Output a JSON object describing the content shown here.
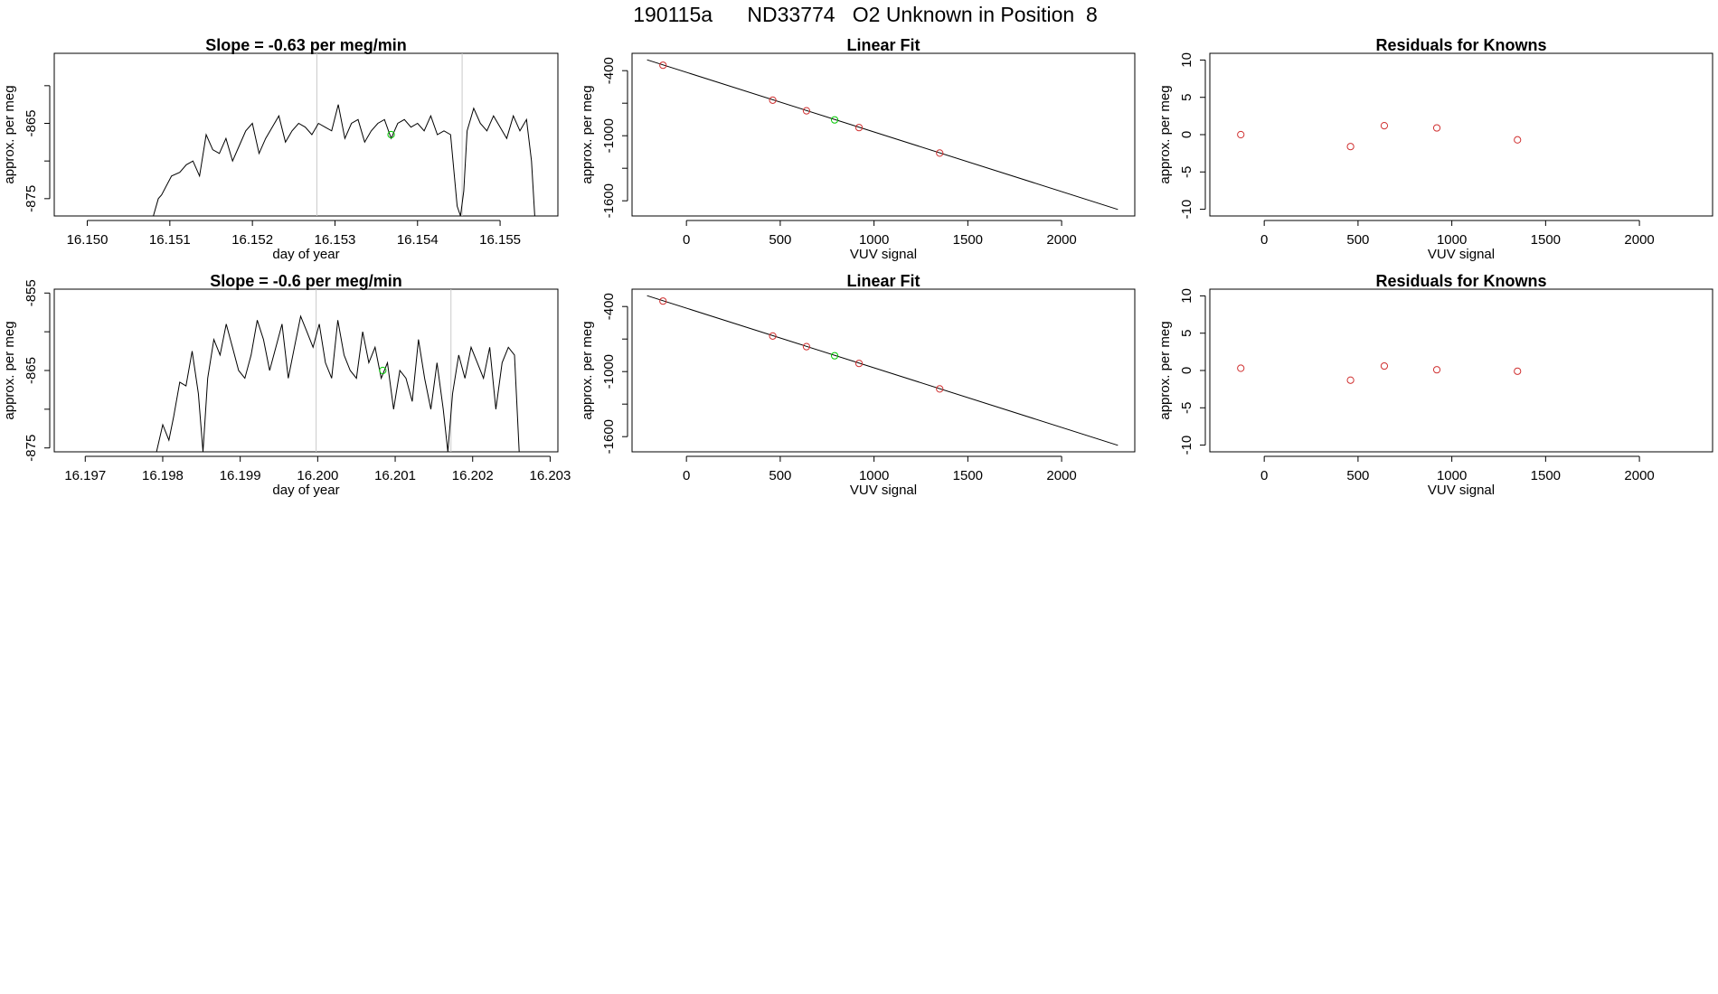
{
  "page": {
    "title": "190115a      ND33774   O2 Unknown in Position  8"
  },
  "chart_data": [
    {
      "type": "line",
      "title": "Slope =  -0.63  per meg/min",
      "xlabel": "day of year",
      "ylabel": "approx. per meg",
      "xlim": [
        16.1496,
        16.1557
      ],
      "ylim": [
        -877.3,
        -855.7
      ],
      "xticks": [
        "16.150",
        "16.151",
        "16.152",
        "16.153",
        "16.154",
        "16.155"
      ],
      "yticks": [
        -875,
        -870,
        -865,
        -860
      ],
      "ytick_labels": [
        "-875",
        "",
        "-865",
        ""
      ],
      "vlines": [
        16.15278,
        16.15454
      ],
      "series": [
        {
          "x": [
            16.1508,
            16.15086,
            16.1509,
            16.15102,
            16.15112,
            16.1512,
            16.15128,
            16.15136,
            16.15144,
            16.15152,
            16.1516,
            16.15168,
            16.15176,
            16.15184,
            16.15192,
            16.152,
            16.15208,
            16.15216,
            16.15224,
            16.15232,
            16.1524,
            16.15248,
            16.15256,
            16.15264,
            16.15272,
            16.1528,
            16.15288,
            16.15296,
            16.15304,
            16.15312,
            16.1532,
            16.15328,
            16.15336,
            16.15344,
            16.15352,
            16.1536,
            16.15368,
            16.15376,
            16.15384,
            16.15392,
            16.154,
            16.15408,
            16.15416,
            16.15424,
            16.15432,
            16.1544,
            16.15448,
            16.15452,
            16.15456,
            16.1546,
            16.15468,
            16.15476,
            16.15484,
            16.15492,
            16.155,
            16.15508,
            16.15516,
            16.15524,
            16.15532,
            16.15538,
            16.15542
          ],
          "values": [
            -877.3,
            -875,
            -874.5,
            -872,
            -871.5,
            -870.5,
            -870,
            -872,
            -866.5,
            -868.5,
            -869,
            -867,
            -870,
            -868,
            -866,
            -865,
            -869,
            -867,
            -865.5,
            -864,
            -867.5,
            -866,
            -865,
            -865.5,
            -866.5,
            -865,
            -865.5,
            -866,
            -862.5,
            -867,
            -865,
            -864.5,
            -867.5,
            -866,
            -865,
            -864.5,
            -867,
            -865,
            -864.5,
            -865.5,
            -865,
            -866,
            -864,
            -866.5,
            -866,
            -866.5,
            -876,
            -877.3,
            -874,
            -866,
            -863,
            -865,
            -866,
            -864,
            -865.5,
            -867,
            -864,
            -866,
            -864.5,
            -870,
            -877.3
          ]
        }
      ],
      "points": [
        {
          "x": 16.15368,
          "y": -866.5,
          "color": "#00c800"
        }
      ]
    },
    {
      "type": "scatter",
      "title": "Linear Fit",
      "xlabel": "VUV signal",
      "ylabel": "approx. per meg",
      "xlim": [
        -290,
        2390
      ],
      "ylim": [
        -1740,
        -240
      ],
      "xticks": [
        0,
        500,
        1000,
        1500,
        2000
      ],
      "yticks": [
        -400,
        -700,
        -1000,
        -1300,
        -1600
      ],
      "ytick_labels": [
        "-400",
        "",
        "-1000",
        "",
        "-1600"
      ],
      "fit_line": {
        "x": [
          -210,
          2300
        ],
        "y": [
          -300,
          -1680
        ]
      },
      "points": [
        {
          "x": -125,
          "y": -350,
          "color": "#d03030"
        },
        {
          "x": 460,
          "y": -672,
          "color": "#d03030"
        },
        {
          "x": 640,
          "y": -770,
          "color": "#d03030"
        },
        {
          "x": 790,
          "y": -854,
          "color": "#00c800"
        },
        {
          "x": 920,
          "y": -925,
          "color": "#d03030"
        },
        {
          "x": 1350,
          "y": -1160,
          "color": "#d03030"
        }
      ]
    },
    {
      "type": "scatter",
      "title": "Residuals for Knowns",
      "xlabel": "VUV signal",
      "ylabel": "approx. per meg",
      "xlim": [
        -290,
        2390
      ],
      "ylim": [
        -10.9,
        10.9
      ],
      "xticks": [
        0,
        500,
        1000,
        1500,
        2000
      ],
      "yticks": [
        -10,
        -5,
        0,
        5,
        10
      ],
      "ytick_labels": [
        "-10",
        "-5",
        "0",
        "5",
        "10"
      ],
      "points": [
        {
          "x": -125,
          "y": 0,
          "color": "#d03030"
        },
        {
          "x": 460,
          "y": -1.6,
          "color": "#d03030"
        },
        {
          "x": 640,
          "y": 1.2,
          "color": "#d03030"
        },
        {
          "x": 920,
          "y": 0.9,
          "color": "#d03030"
        },
        {
          "x": 1350,
          "y": -0.7,
          "color": "#d03030"
        }
      ]
    },
    {
      "type": "line",
      "title": "Slope =  -0.6  per meg/min",
      "xlabel": "day of year",
      "ylabel": "approx. per meg",
      "xlim": [
        16.1966,
        16.2031
      ],
      "ylim": [
        -875.5,
        -854.5
      ],
      "xticks": [
        "16.197",
        "16.198",
        "16.199",
        "16.200",
        "16.201",
        "16.202",
        "16.203"
      ],
      "yticks": [
        -875,
        -870,
        -865,
        -860,
        -855
      ],
      "ytick_labels": [
        "-875",
        "",
        "-865",
        "",
        "-855"
      ],
      "vlines": [
        16.19998,
        16.20172
      ],
      "series": [
        {
          "x": [
            16.19792,
            16.198,
            16.19808,
            16.19814,
            16.19822,
            16.1983,
            16.19838,
            16.19846,
            16.19852,
            16.19858,
            16.19866,
            16.19874,
            16.19882,
            16.1989,
            16.19898,
            16.19906,
            16.19914,
            16.19922,
            16.1993,
            16.19938,
            16.19946,
            16.19954,
            16.19962,
            16.1997,
            16.19978,
            16.19986,
            16.19994,
            16.20002,
            16.2001,
            16.20018,
            16.20026,
            16.20034,
            16.20042,
            16.2005,
            16.20058,
            16.20066,
            16.20074,
            16.20082,
            16.2009,
            16.20098,
            16.20106,
            16.20114,
            16.20122,
            16.2013,
            16.20138,
            16.20146,
            16.20154,
            16.20162,
            16.20168,
            16.20174,
            16.20182,
            16.2019,
            16.20198,
            16.20206,
            16.20214,
            16.20222,
            16.2023,
            16.20238,
            16.20246,
            16.20254,
            16.2026
          ],
          "values": [
            -875.5,
            -872,
            -874,
            -871,
            -866.5,
            -867,
            -862.5,
            -868,
            -875.5,
            -866,
            -861,
            -863,
            -859,
            -862,
            -865,
            -866,
            -863,
            -858.5,
            -861,
            -865,
            -862,
            -859,
            -866,
            -862,
            -858,
            -860,
            -862,
            -859,
            -864,
            -866,
            -858.5,
            -863,
            -865,
            -866,
            -860,
            -864,
            -862,
            -866,
            -864,
            -870,
            -865,
            -866,
            -869,
            -861,
            -866,
            -870,
            -864,
            -870,
            -875.5,
            -868,
            -863,
            -866,
            -862,
            -864,
            -866,
            -862,
            -870,
            -864,
            -862,
            -863,
            -875.5
          ]
        }
      ],
      "points": [
        {
          "x": 16.20084,
          "y": -865,
          "color": "#00c800"
        }
      ]
    },
    {
      "type": "scatter",
      "title": "Linear Fit",
      "xlabel": "VUV signal",
      "ylabel": "approx. per meg",
      "xlim": [
        -290,
        2390
      ],
      "ylim": [
        -1740,
        -240
      ],
      "xticks": [
        0,
        500,
        1000,
        1500,
        2000
      ],
      "yticks": [
        -400,
        -700,
        -1000,
        -1300,
        -1600
      ],
      "ytick_labels": [
        "-400",
        "",
        "-1000",
        "",
        "-1600"
      ],
      "fit_line": {
        "x": [
          -210,
          2300
        ],
        "y": [
          -300,
          -1680
        ]
      },
      "points": [
        {
          "x": -125,
          "y": -350,
          "color": "#d03030"
        },
        {
          "x": 460,
          "y": -672,
          "color": "#d03030"
        },
        {
          "x": 640,
          "y": -770,
          "color": "#d03030"
        },
        {
          "x": 790,
          "y": -854,
          "color": "#00c800"
        },
        {
          "x": 920,
          "y": -925,
          "color": "#d03030"
        },
        {
          "x": 1350,
          "y": -1160,
          "color": "#d03030"
        }
      ]
    },
    {
      "type": "scatter",
      "title": "Residuals for Knowns",
      "xlabel": "VUV signal",
      "ylabel": "approx. per meg",
      "xlim": [
        -290,
        2390
      ],
      "ylim": [
        -10.9,
        10.9
      ],
      "xticks": [
        0,
        500,
        1000,
        1500,
        2000
      ],
      "yticks": [
        -10,
        -5,
        0,
        5,
        10
      ],
      "ytick_labels": [
        "-10",
        "-5",
        "0",
        "5",
        "10"
      ],
      "points": [
        {
          "x": -125,
          "y": 0.3,
          "color": "#d03030"
        },
        {
          "x": 460,
          "y": -1.3,
          "color": "#d03030"
        },
        {
          "x": 640,
          "y": 0.6,
          "color": "#d03030"
        },
        {
          "x": 920,
          "y": 0.1,
          "color": "#d03030"
        },
        {
          "x": 1350,
          "y": -0.1,
          "color": "#d03030"
        }
      ]
    }
  ]
}
